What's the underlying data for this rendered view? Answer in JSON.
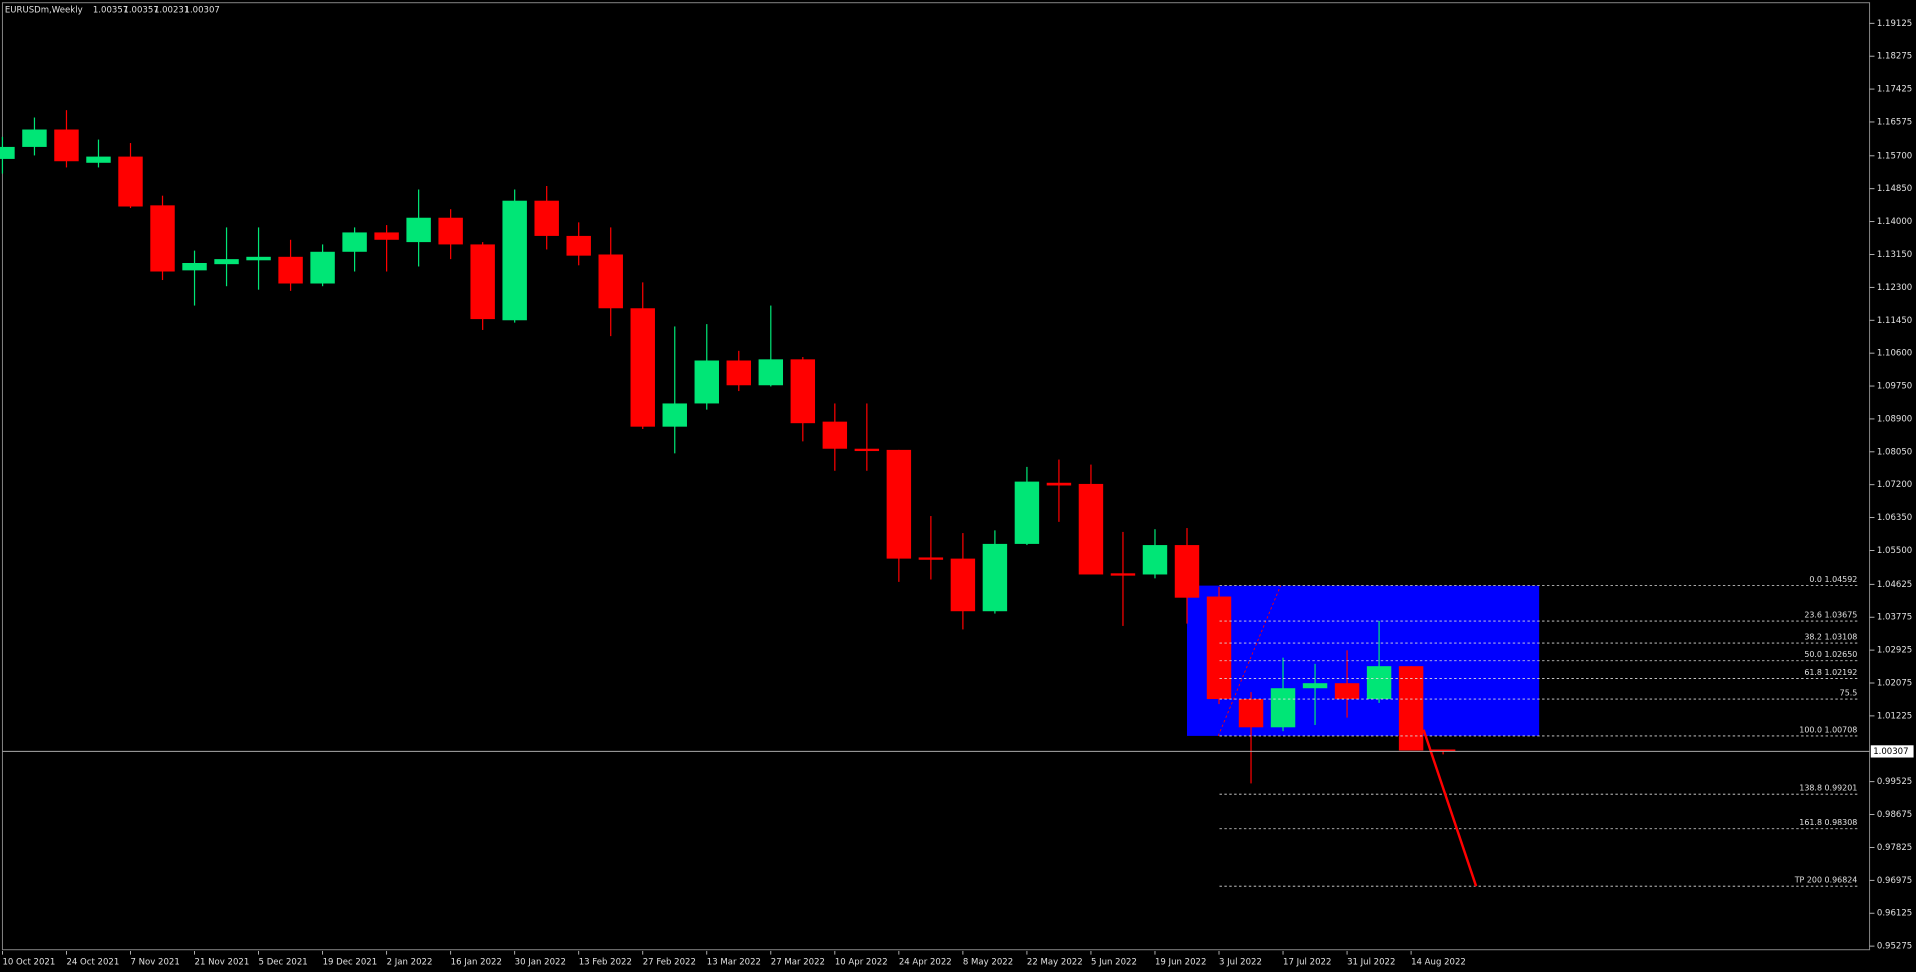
{
  "chart_data": {
    "type": "candlestick",
    "symbol": "EURUSDm,Weekly",
    "categories": [
      "10 Oct 2021",
      null,
      "24 Oct 2021",
      null,
      "7 Nov 2021",
      null,
      "21 Nov 2021",
      null,
      "5 Dec 2021",
      null,
      "19 Dec 2021",
      null,
      "2 Jan 2022",
      null,
      "16 Jan 2022",
      null,
      "30 Jan 2022",
      null,
      "13 Feb 2022",
      null,
      "27 Feb 2022",
      null,
      "13 Mar 2022",
      null,
      "27 Mar 2022",
      null,
      "10 Apr 2022",
      null,
      "24 Apr 2022",
      null,
      "8 May 2022",
      null,
      "22 May 2022",
      null,
      "5 Jun 2022",
      null,
      "19 Jun 2022",
      null,
      "3 Jul 2022",
      null,
      "17 Jul 2022",
      null,
      "31 Jul 2022",
      null,
      "14 Aug 2022",
      null
    ],
    "open": [
      1.1562,
      1.1593,
      1.1638,
      1.1552,
      1.1568,
      1.1442,
      1.1274,
      1.129,
      1.13,
      1.1309,
      1.124,
      1.1322,
      1.1372,
      1.1347,
      1.141,
      1.1341,
      1.1145,
      1.1454,
      1.1363,
      1.1315,
      1.1176,
      1.087,
      1.093,
      1.1041,
      1.0977,
      1.1044,
      1.0883,
      1.0813,
      1.081,
      1.0532,
      1.0529,
      1.0393,
      1.0567,
      1.0725,
      1.0722,
      1.0491,
      1.0488,
      1.0564,
      1.0431,
      1.0166,
      1.0093,
      1.0194,
      1.0207,
      1.0166,
      1.0251,
      1.00357
    ],
    "high": [
      1.1619,
      1.1669,
      1.1688,
      1.1612,
      1.1603,
      1.1467,
      1.1325,
      1.1385,
      1.1385,
      1.1353,
      1.1341,
      1.1385,
      1.1391,
      1.1483,
      1.1432,
      1.1347,
      1.1483,
      1.1492,
      1.1398,
      1.1385,
      1.1243,
      1.1129,
      1.1135,
      1.1066,
      1.1183,
      1.105,
      1.093,
      1.093,
      1.081,
      1.0639,
      1.0595,
      1.0602,
      1.0766,
      1.0785,
      1.0772,
      1.0598,
      1.0605,
      1.0608,
      1.0456,
      1.0184,
      1.0273,
      1.0257,
      1.0292,
      1.0368,
      1.0251,
      1.00357
    ],
    "low": [
      1.1524,
      1.1571,
      1.154,
      1.154,
      1.1435,
      1.1249,
      1.1183,
      1.1233,
      1.1224,
      1.1221,
      1.1233,
      1.1271,
      1.1271,
      1.1284,
      1.1303,
      1.112,
      1.1139,
      1.1328,
      1.1287,
      1.1104,
      1.0864,
      1.0801,
      1.0914,
      1.0962,
      1.0974,
      1.0832,
      1.0756,
      1.0756,
      1.0469,
      1.0475,
      1.0346,
      1.0387,
      1.0564,
      1.0624,
      1.0488,
      1.0355,
      1.0478,
      1.0361,
      1.0153,
      0.9948,
      1.0083,
      1.0099,
      1.0118,
      1.0156,
      1.0033,
      1.00231
    ],
    "close": [
      1.1593,
      1.1638,
      1.1556,
      1.1568,
      1.1439,
      1.1271,
      1.1293,
      1.1303,
      1.1309,
      1.124,
      1.1322,
      1.1372,
      1.1353,
      1.141,
      1.1341,
      1.1148,
      1.1454,
      1.1363,
      1.1312,
      1.1176,
      1.087,
      1.093,
      1.1041,
      1.0977,
      1.1044,
      1.0879,
      1.0813,
      1.0807,
      1.0529,
      1.0526,
      1.0393,
      1.0567,
      1.0728,
      1.0718,
      1.0488,
      1.0485,
      1.0564,
      1.0428,
      1.0166,
      1.0093,
      1.0194,
      1.0207,
      1.0166,
      1.0251,
      1.0033,
      1.00307
    ],
    "up_color": "#00e676",
    "down_color": "#ff0000",
    "bid": 1.00307,
    "ylim": [
      0.9515,
      1.1972
    ],
    "yticks": [
      1.19125,
      1.18275,
      1.17425,
      1.16575,
      {
        "value": 1.157,
        "label": "1.15700"
      },
      {
        "value": 1.1485,
        "label": "1.14850"
      },
      {
        "value": 1.14,
        "label": "1.14000"
      },
      {
        "value": 1.1315,
        "label": "1.13150"
      },
      {
        "value": 1.123,
        "label": "1.12300"
      },
      {
        "value": 1.1145,
        "label": "1.11450"
      },
      {
        "value": 1.106,
        "label": "1.10600"
      },
      {
        "value": 1.0975,
        "label": "1.09750"
      },
      {
        "value": 1.089,
        "label": "1.08900"
      },
      {
        "value": 1.0805,
        "label": "1.08050"
      },
      {
        "value": 1.072,
        "label": "1.07200"
      },
      {
        "value": 1.0635,
        "label": "1.06350"
      },
      {
        "value": 1.055,
        "label": "1.05500"
      },
      1.04625,
      1.03775,
      1.02925,
      1.02075,
      1.01225,
      0.99525,
      0.98675,
      0.97825,
      0.96975,
      0.96125,
      0.95275
    ],
    "fib_levels": [
      {
        "label": "0.0 1.04592",
        "value": 1.04592
      },
      {
        "label": "23.6 1.03675",
        "value": 1.03675
      },
      {
        "label": "38.2 1.03108",
        "value": 1.03108
      },
      {
        "label": "50.0 1.02650",
        "value": 1.0265
      },
      {
        "label": "61.8 1.02192",
        "value": 1.02192
      },
      {
        "label": "75.5",
        "value": 1.0166
      },
      {
        "label": "100.0 1.00708",
        "value": 1.00708
      },
      {
        "label": "138.8 0.99201",
        "value": 0.99201
      },
      {
        "label": "161.8 0.98308",
        "value": 0.98308
      },
      {
        "label": "TP 200 0.96824",
        "value": 0.96824
      }
    ],
    "zone_color": "#0000ff"
  }
}
